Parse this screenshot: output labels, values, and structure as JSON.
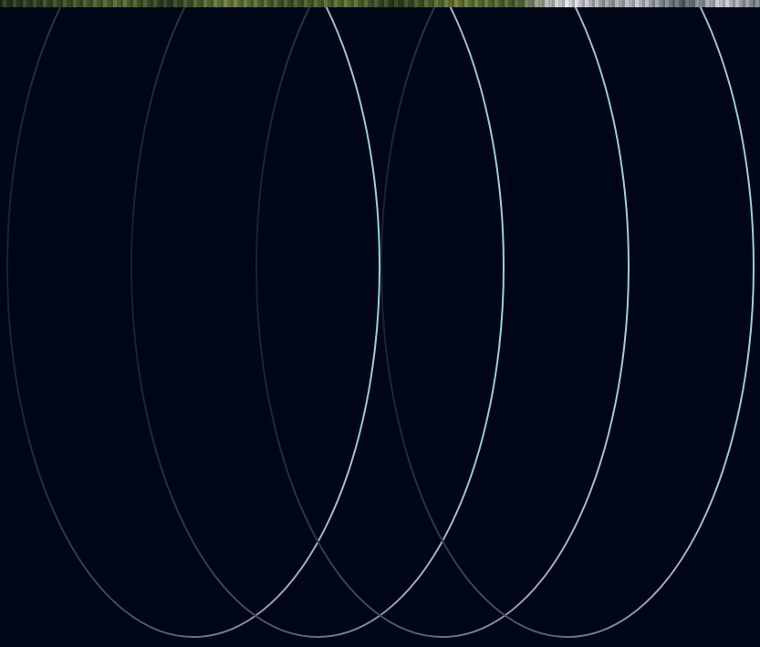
{
  "colors": {
    "background": "#010616",
    "ellipse_bright": "#9ad1df",
    "ellipse_dim": "#1a2033",
    "ellipse_mid": "#6f7690"
  },
  "graphic": {
    "ellipse_count": 4,
    "top_strip": "aerial-photo-strip"
  }
}
